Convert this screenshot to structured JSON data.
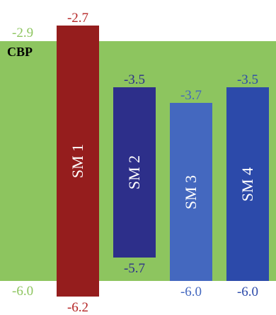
{
  "host": {
    "name": "CBP",
    "top": -2.9,
    "bottom": -6.0,
    "top_label": "-2.9",
    "bottom_label": "-6.0",
    "color": "#8dc55f",
    "label_color": "#8dc55f"
  },
  "molecules": [
    {
      "name": "SM 1",
      "top": -2.7,
      "bottom": -6.2,
      "top_label": "-2.7",
      "bottom_label": "-6.2",
      "color": "#951d1d",
      "label_color": "#b52525"
    },
    {
      "name": "SM 2",
      "top": -3.5,
      "bottom": -5.7,
      "top_label": "-3.5",
      "bottom_label": "-5.7",
      "color": "#2d2f8a",
      "label_color": "#2d2f8a"
    },
    {
      "name": "SM 3",
      "top": -3.7,
      "bottom": -6.0,
      "top_label": "-3.7",
      "bottom_label": "-6.0",
      "color": "#4468bf",
      "label_color": "#4468bf"
    },
    {
      "name": "SM 4",
      "top": -3.5,
      "bottom": -6.0,
      "top_label": "-3.5",
      "bottom_label": "-6.0",
      "color": "#2c4aaa",
      "label_color": "#2c4aaa"
    }
  ]
}
